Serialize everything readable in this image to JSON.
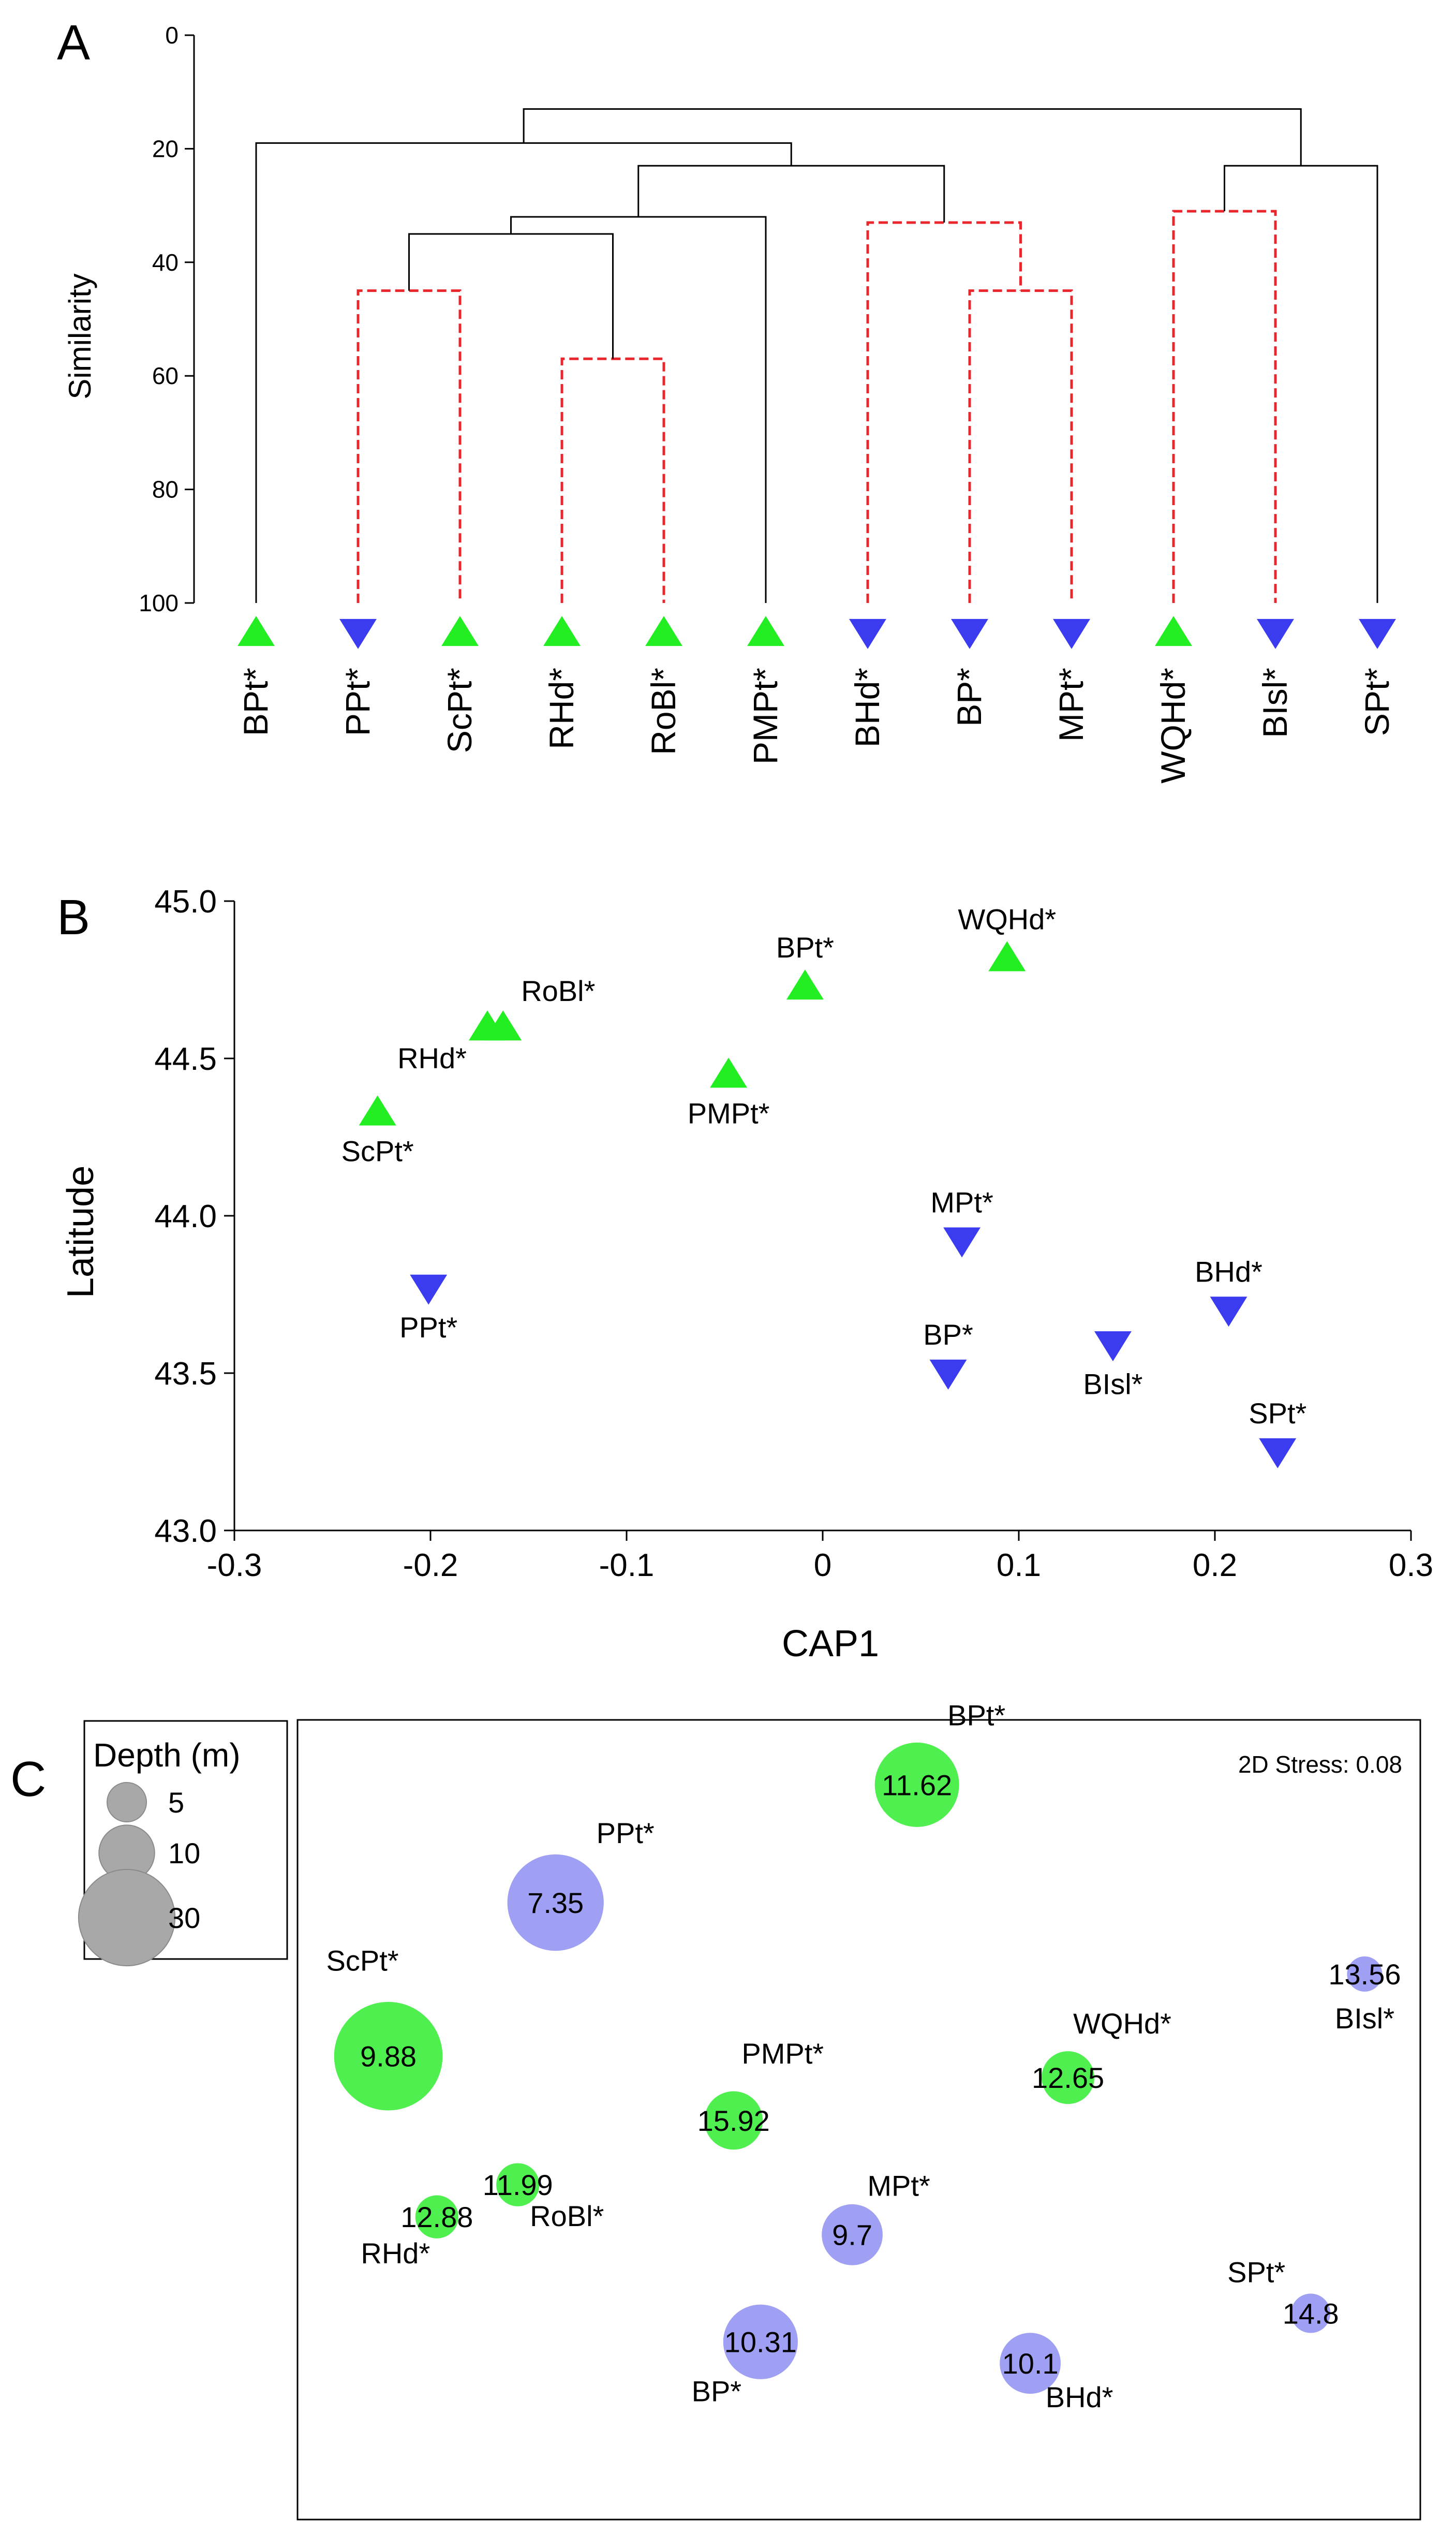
{
  "chart_data": [
    {
      "panel": "A",
      "type": "dendrogram",
      "ylabel": "Similarity",
      "ylim": [
        100,
        0
      ],
      "yticks": [
        0,
        20,
        40,
        60,
        80,
        100
      ],
      "leaves": [
        {
          "label": "BPt*",
          "group": "green"
        },
        {
          "label": "PPt*",
          "group": "blue"
        },
        {
          "label": "ScPt*",
          "group": "green"
        },
        {
          "label": "RHd*",
          "group": "green"
        },
        {
          "label": "RoBl*",
          "group": "green"
        },
        {
          "label": "PMPt*",
          "group": "green"
        },
        {
          "label": "BHd*",
          "group": "blue"
        },
        {
          "label": "BP*",
          "group": "blue"
        },
        {
          "label": "MPt*",
          "group": "blue"
        },
        {
          "label": "WQHd*",
          "group": "green"
        },
        {
          "label": "BIsl*",
          "group": "blue"
        },
        {
          "label": "SPt*",
          "group": "blue"
        }
      ],
      "merges": [
        {
          "left": 1,
          "right": 2,
          "similarity": 45,
          "significant": false
        },
        {
          "left": 3,
          "right": 4,
          "similarity": 57,
          "significant": false
        },
        {
          "left": 12,
          "right": 13,
          "similarity": 35,
          "significant": true
        },
        {
          "left": 14,
          "right": 5,
          "similarity": 32,
          "significant": true
        },
        {
          "left": 7,
          "right": 8,
          "similarity": 45,
          "significant": false
        },
        {
          "left": 6,
          "right": 16,
          "similarity": 33,
          "significant": false
        },
        {
          "left": 15,
          "right": 17,
          "similarity": 23,
          "significant": true
        },
        {
          "left": 0,
          "right": 18,
          "similarity": 19,
          "significant": true
        },
        {
          "left": 9,
          "right": 10,
          "similarity": 31,
          "significant": false
        },
        {
          "left": 20,
          "right": 11,
          "similarity": 23,
          "significant": true
        },
        {
          "left": 19,
          "right": 21,
          "similarity": 13,
          "significant": true
        }
      ]
    },
    {
      "panel": "B",
      "type": "scatter",
      "xlabel": "CAP1",
      "ylabel": "Latitude",
      "xlim": [
        -0.3,
        0.3
      ],
      "ylim": [
        43.0,
        45.0
      ],
      "xticks": [
        -0.3,
        -0.2,
        -0.1,
        0,
        0.1,
        0.2,
        0.3
      ],
      "xtick_labels": [
        "-0.3",
        "-0.2",
        "-0.1",
        "0",
        "0.1",
        "0.2",
        "0.3"
      ],
      "yticks": [
        43.0,
        43.5,
        44.0,
        44.5,
        45.0
      ],
      "ytick_labels": [
        "43.0",
        "43.5",
        "44.0",
        "44.5",
        "45.0"
      ],
      "points": [
        {
          "label": "BPt*",
          "x": -0.009,
          "y": 44.73,
          "group": "green",
          "label_pos": "above"
        },
        {
          "label": "WQHd*",
          "x": 0.094,
          "y": 44.82,
          "group": "green",
          "label_pos": "above"
        },
        {
          "label": "RoBl*",
          "x": -0.163,
          "y": 44.6,
          "group": "green",
          "label_pos": "above-right"
        },
        {
          "label": "RHd*",
          "x": -0.171,
          "y": 44.6,
          "group": "green",
          "label_pos": "left"
        },
        {
          "label": "PMPt*",
          "x": -0.048,
          "y": 44.45,
          "group": "green",
          "label_pos": "below"
        },
        {
          "label": "ScPt*",
          "x": -0.227,
          "y": 44.33,
          "group": "green",
          "label_pos": "below"
        },
        {
          "label": "MPt*",
          "x": 0.071,
          "y": 43.92,
          "group": "blue",
          "label_pos": "above"
        },
        {
          "label": "PPt*",
          "x": -0.201,
          "y": 43.77,
          "group": "blue",
          "label_pos": "below"
        },
        {
          "label": "BHd*",
          "x": 0.207,
          "y": 43.7,
          "group": "blue",
          "label_pos": "above"
        },
        {
          "label": "BIsl*",
          "x": 0.148,
          "y": 43.59,
          "group": "blue",
          "label_pos": "below"
        },
        {
          "label": "BP*",
          "x": 0.064,
          "y": 43.5,
          "group": "blue",
          "label_pos": "above"
        },
        {
          "label": "SPt*",
          "x": 0.232,
          "y": 43.25,
          "group": "blue",
          "label_pos": "above"
        }
      ]
    },
    {
      "panel": "C",
      "type": "bubble",
      "title": "2D Stress: 0.08",
      "size_legend_title": "Depth (m)",
      "size_legend": [
        5,
        10,
        30
      ],
      "points": [
        {
          "label": "BPt*",
          "value": "11.62",
          "depth": 23,
          "x": 0.555,
          "y": 0.965,
          "group": "green"
        },
        {
          "label": "PPt*",
          "value": "7.35",
          "depth": 30,
          "x": 0.22,
          "y": 0.8,
          "group": "blue"
        },
        {
          "label": "BIsl*",
          "value": "13.56",
          "depth": 4,
          "x": 0.97,
          "y": 0.7,
          "group": "blue"
        },
        {
          "label": "ScPt*",
          "value": "9.88",
          "depth": 38,
          "x": 0.065,
          "y": 0.585,
          "group": "green"
        },
        {
          "label": "WQHd*",
          "value": "12.65",
          "depth": 9,
          "x": 0.695,
          "y": 0.555,
          "group": "green"
        },
        {
          "label": "PMPt*",
          "value": "15.92",
          "depth": 11,
          "x": 0.385,
          "y": 0.495,
          "group": "green"
        },
        {
          "label": "RoBl*",
          "value": "11.99",
          "depth": 6,
          "x": 0.185,
          "y": 0.405,
          "group": "green"
        },
        {
          "label": "RHd*",
          "value": "12.88",
          "depth": 6,
          "x": 0.11,
          "y": 0.36,
          "group": "green"
        },
        {
          "label": "MPt*",
          "value": "9.7",
          "depth": 12,
          "x": 0.495,
          "y": 0.335,
          "group": "blue"
        },
        {
          "label": "SPt*",
          "value": "14.8",
          "depth": 5,
          "x": 0.92,
          "y": 0.225,
          "group": "blue"
        },
        {
          "label": "BP*",
          "value": "10.31",
          "depth": 18,
          "x": 0.41,
          "y": 0.185,
          "group": "blue"
        },
        {
          "label": "BHd*",
          "value": "10.1",
          "depth": 12,
          "x": 0.66,
          "y": 0.155,
          "group": "blue"
        }
      ]
    }
  ],
  "panel_letters": {
    "a": "A",
    "b": "B",
    "c": "C"
  },
  "colors": {
    "green": "#22ee22",
    "blue": "#3b3bf0",
    "green_bubble": "#44ee44",
    "blue_bubble": "#9a9af2",
    "sig_line": "#e8262b",
    "line": "#000000",
    "legend_bubble": "#a8a8a8"
  }
}
